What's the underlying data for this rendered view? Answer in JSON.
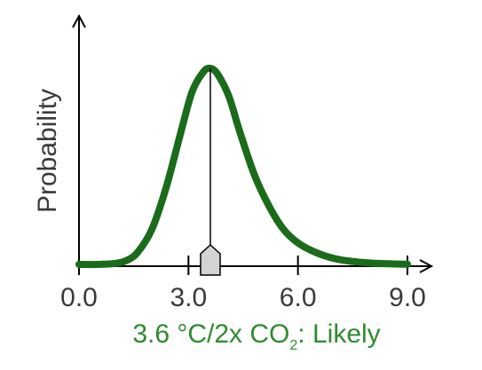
{
  "chart_data": {
    "type": "line",
    "ylabel": "Probability",
    "x_ticks": [
      {
        "value": 0.0,
        "label": "0.0"
      },
      {
        "value": 3.0,
        "label": "3.0"
      },
      {
        "value": 6.0,
        "label": "6.0"
      },
      {
        "value": 9.0,
        "label": "9.0"
      }
    ],
    "xlim": [
      0,
      9
    ],
    "grid": false,
    "series": [
      {
        "color": "#1a6b1a",
        "x": [
          0.0,
          0.5,
          1.0,
          1.3,
          1.6,
          2.0,
          2.4,
          2.8,
          3.1,
          3.4,
          3.6,
          3.8,
          4.1,
          4.4,
          4.8,
          5.2,
          5.6,
          6.0,
          6.5,
          7.0,
          7.5,
          8.0,
          8.5,
          9.0
        ],
        "y": [
          0.0,
          0.0,
          0.005,
          0.02,
          0.06,
          0.18,
          0.4,
          0.68,
          0.88,
          0.98,
          1.0,
          0.97,
          0.86,
          0.68,
          0.46,
          0.3,
          0.18,
          0.11,
          0.06,
          0.03,
          0.015,
          0.007,
          0.003,
          0.001
        ]
      }
    ],
    "marker": {
      "value": 3.6,
      "color": "#d3d3d3"
    },
    "caption": {
      "text_main": "3.6 °C/2x CO",
      "subscript": "2",
      "text_end": ": Likely",
      "color": "#2e8b2e"
    }
  }
}
